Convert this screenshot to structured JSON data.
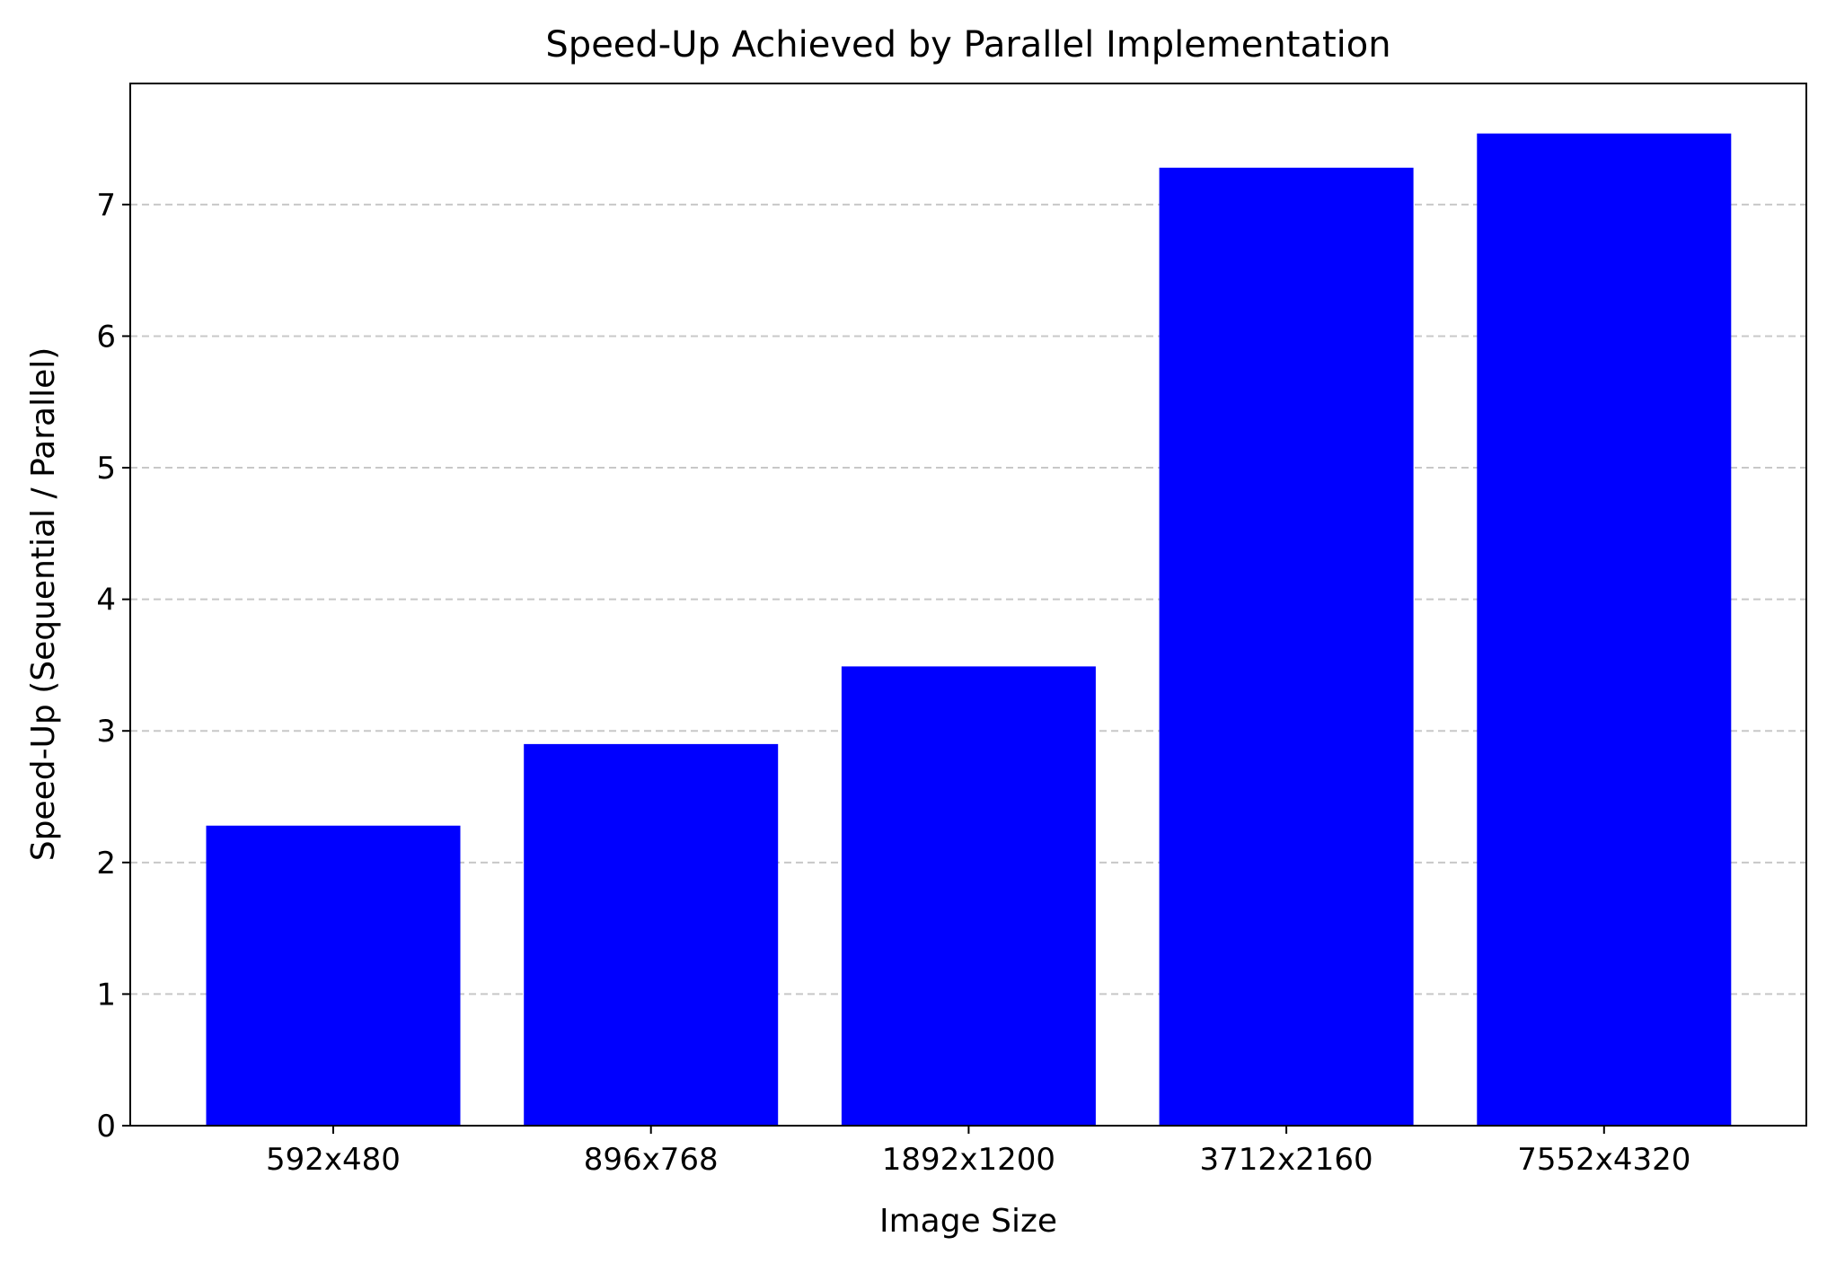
{
  "chart_data": {
    "type": "bar",
    "title": "Speed-Up Achieved by Parallel Implementation",
    "xlabel": "Image Size",
    "ylabel": "Speed-Up (Sequential / Parallel)",
    "categories": [
      "592x480",
      "896x768",
      "1892x1200",
      "3712x2160",
      "7552x4320"
    ],
    "values": [
      2.28,
      2.9,
      3.49,
      7.28,
      7.54
    ],
    "ylim": [
      0,
      7.92
    ],
    "yticks": [
      "0",
      "1",
      "2",
      "3",
      "4",
      "5",
      "6",
      "7"
    ],
    "grid": "horizontal dashed",
    "colors": {
      "bar": "#0000ff",
      "grid": "#c8c8c8"
    }
  }
}
